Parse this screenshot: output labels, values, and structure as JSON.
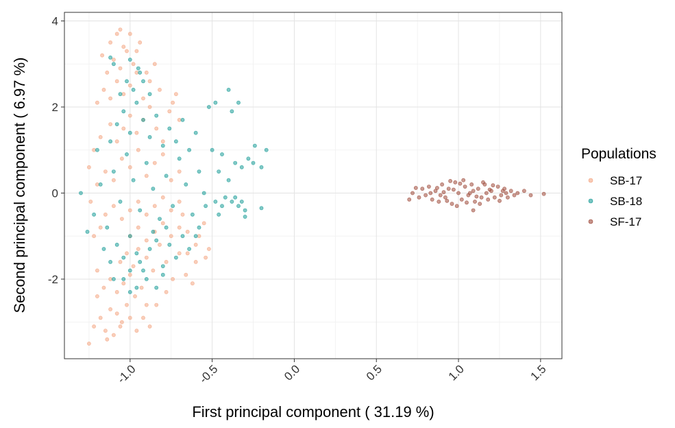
{
  "chart_data": {
    "type": "scatter",
    "title": "",
    "xlabel": "First principal component ( 31.19 %)",
    "ylabel": "Second principal component ( 6.97 %)",
    "xlim": [
      -1.4,
      1.63
    ],
    "ylim": [
      -3.85,
      4.2
    ],
    "x_ticks": [
      -1.0,
      -0.5,
      0.0,
      0.5,
      1.0,
      1.5
    ],
    "x_tick_labels": [
      "-1.0",
      "-0.5",
      "0.0",
      "0.5",
      "1.0",
      "1.5"
    ],
    "y_ticks": [
      -2,
      0,
      2,
      4
    ],
    "y_tick_labels": [
      "-2",
      "0",
      "2",
      "4"
    ],
    "grid": true,
    "legend": {
      "title": "Populations",
      "placement": "right"
    },
    "series": [
      {
        "name": "SB-17",
        "color": "#F4A582",
        "points": [
          [
            -1.25,
            -3.5
          ],
          [
            -1.22,
            -3.1
          ],
          [
            -1.18,
            -2.9
          ],
          [
            -1.15,
            -3.2
          ],
          [
            -1.12,
            -2.7
          ],
          [
            -1.1,
            -3.3
          ],
          [
            -1.08,
            -2.8
          ],
          [
            -1.05,
            -3.0
          ],
          [
            -1.02,
            -2.6
          ],
          [
            -1.0,
            -2.9
          ],
          [
            -1.2,
            -2.4
          ],
          [
            -1.16,
            -2.2
          ],
          [
            -1.12,
            -2.0
          ],
          [
            -1.08,
            -2.3
          ],
          [
            -1.04,
            -2.1
          ],
          [
            -1.0,
            -1.9
          ],
          [
            -0.97,
            -2.4
          ],
          [
            -0.93,
            -2.2
          ],
          [
            -0.9,
            -2.6
          ],
          [
            -0.88,
            -3.1
          ],
          [
            -1.06,
            -1.6
          ],
          [
            -1.02,
            -1.4
          ],
          [
            -0.98,
            -1.7
          ],
          [
            -0.95,
            -1.3
          ],
          [
            -0.9,
            -1.5
          ],
          [
            -0.86,
            -1.8
          ],
          [
            -0.82,
            -1.2
          ],
          [
            -0.78,
            -1.6
          ],
          [
            -0.74,
            -2.0
          ],
          [
            -0.7,
            -1.4
          ],
          [
            -0.66,
            -1.9
          ],
          [
            -0.62,
            -2.1
          ],
          [
            -0.6,
            -1.6
          ],
          [
            -1.0,
            -1.0
          ],
          [
            -0.95,
            -0.8
          ],
          [
            -0.9,
            -1.1
          ],
          [
            -0.85,
            -0.9
          ],
          [
            -0.8,
            -0.7
          ],
          [
            -0.75,
            -1.0
          ],
          [
            -0.7,
            -0.8
          ],
          [
            -0.65,
            -0.9
          ],
          [
            -0.6,
            -1.2
          ],
          [
            -0.55,
            -0.7
          ],
          [
            -0.52,
            -1.3
          ],
          [
            -1.15,
            -0.5
          ],
          [
            -1.1,
            -0.3
          ],
          [
            -1.05,
            -0.6
          ],
          [
            -1.0,
            -0.4
          ],
          [
            -0.95,
            -0.2
          ],
          [
            -0.9,
            -0.5
          ],
          [
            -0.85,
            -0.3
          ],
          [
            -0.8,
            -0.1
          ],
          [
            -0.75,
            -0.4
          ],
          [
            -0.7,
            -0.2
          ],
          [
            -1.2,
            0.2
          ],
          [
            -1.15,
            0.5
          ],
          [
            -1.1,
            0.3
          ],
          [
            -1.05,
            0.8
          ],
          [
            -1.0,
            0.6
          ],
          [
            -0.95,
            1.0
          ],
          [
            -0.9,
            0.4
          ],
          [
            -0.85,
            0.7
          ],
          [
            -0.8,
            0.9
          ],
          [
            -0.75,
            0.3
          ],
          [
            -0.7,
            0.5
          ],
          [
            -1.22,
            1.0
          ],
          [
            -1.18,
            1.3
          ],
          [
            -1.12,
            1.6
          ],
          [
            -1.08,
            1.2
          ],
          [
            -1.04,
            1.5
          ],
          [
            -1.0,
            1.8
          ],
          [
            -0.96,
            1.4
          ],
          [
            -0.92,
            1.7
          ],
          [
            -0.88,
            2.0
          ],
          [
            -0.84,
            1.5
          ],
          [
            -0.8,
            1.2
          ],
          [
            -0.76,
            1.9
          ],
          [
            -0.72,
            2.3
          ],
          [
            -0.7,
            1.7
          ],
          [
            -1.2,
            2.1
          ],
          [
            -1.16,
            2.4
          ],
          [
            -1.12,
            2.2
          ],
          [
            -1.08,
            2.6
          ],
          [
            -1.04,
            2.3
          ],
          [
            -1.0,
            2.5
          ],
          [
            -0.96,
            2.8
          ],
          [
            -0.92,
            2.2
          ],
          [
            -0.88,
            2.6
          ],
          [
            -0.85,
            3.0
          ],
          [
            -1.14,
            2.8
          ],
          [
            -1.1,
            3.1
          ],
          [
            -1.06,
            2.9
          ],
          [
            -1.02,
            3.3
          ],
          [
            -0.98,
            3.0
          ],
          [
            -0.94,
            3.5
          ],
          [
            -1.12,
            3.5
          ],
          [
            -1.08,
            3.7
          ],
          [
            -1.04,
            3.4
          ],
          [
            -1.0,
            3.7
          ],
          [
            -1.06,
            3.8
          ],
          [
            -1.17,
            3.2
          ],
          [
            -0.96,
            3.3
          ],
          [
            -0.9,
            2.8
          ],
          [
            -0.82,
            2.4
          ],
          [
            -0.74,
            2.1
          ],
          [
            -1.25,
            0.6
          ],
          [
            -1.24,
            -0.2
          ],
          [
            -1.22,
            -1.0
          ],
          [
            -1.2,
            -1.8
          ],
          [
            -1.18,
            -0.8
          ],
          [
            -0.65,
            -1.4
          ],
          [
            -0.58,
            -1.0
          ],
          [
            -0.54,
            -1.5
          ],
          [
            -0.68,
            -0.5
          ],
          [
            -0.78,
            -2.3
          ],
          [
            -0.84,
            -2.6
          ],
          [
            -0.92,
            -2.9
          ],
          [
            -0.96,
            -3.2
          ],
          [
            -1.14,
            -3.4
          ],
          [
            -1.06,
            -3.1
          ]
        ]
      },
      {
        "name": "SB-18",
        "color": "#1A9C98",
        "points": [
          [
            -1.3,
            0.0
          ],
          [
            -1.26,
            -0.9
          ],
          [
            -1.22,
            -0.5
          ],
          [
            -1.18,
            0.2
          ],
          [
            -1.14,
            -0.8
          ],
          [
            -1.1,
            0.5
          ],
          [
            -1.06,
            -0.2
          ],
          [
            -1.02,
            0.9
          ],
          [
            -0.98,
            0.3
          ],
          [
            -0.94,
            -0.4
          ],
          [
            -0.9,
            0.7
          ],
          [
            -0.86,
            0.1
          ],
          [
            -0.82,
            -0.6
          ],
          [
            -0.78,
            0.4
          ],
          [
            -0.74,
            -0.3
          ],
          [
            -0.7,
            0.8
          ],
          [
            -0.66,
            0.2
          ],
          [
            -0.62,
            -0.5
          ],
          [
            -0.58,
            0.5
          ],
          [
            -0.55,
            0.0
          ],
          [
            -1.12,
            1.2
          ],
          [
            -1.08,
            1.6
          ],
          [
            -1.04,
            1.9
          ],
          [
            -1.0,
            1.4
          ],
          [
            -0.96,
            2.1
          ],
          [
            -0.92,
            1.7
          ],
          [
            -0.88,
            1.3
          ],
          [
            -0.84,
            1.8
          ],
          [
            -0.8,
            1.1
          ],
          [
            -0.76,
            1.5
          ],
          [
            -0.72,
            1.2
          ],
          [
            -0.68,
            1.7
          ],
          [
            -0.64,
            1.0
          ],
          [
            -0.6,
            1.4
          ],
          [
            -1.06,
            2.3
          ],
          [
            -1.02,
            2.6
          ],
          [
            -0.98,
            2.4
          ],
          [
            -0.95,
            2.9
          ],
          [
            -0.92,
            2.6
          ],
          [
            -0.88,
            2.3
          ],
          [
            -1.1,
            3.0
          ],
          [
            -1.0,
            3.1
          ],
          [
            -0.94,
            2.8
          ],
          [
            -1.12,
            3.15
          ],
          [
            -1.2,
            1.0
          ],
          [
            -1.16,
            -1.3
          ],
          [
            -1.12,
            -1.6
          ],
          [
            -1.08,
            -1.2
          ],
          [
            -1.04,
            -1.5
          ],
          [
            -1.0,
            -1.0
          ],
          [
            -0.96,
            -1.4
          ],
          [
            -0.92,
            -1.8
          ],
          [
            -0.88,
            -1.3
          ],
          [
            -0.84,
            -1.1
          ],
          [
            -0.8,
            -1.7
          ],
          [
            -0.76,
            -1.2
          ],
          [
            -0.72,
            -1.5
          ],
          [
            -0.68,
            -1.0
          ],
          [
            -0.64,
            -1.3
          ],
          [
            -1.04,
            -2.0
          ],
          [
            -1.0,
            -1.8
          ],
          [
            -0.96,
            -2.2
          ],
          [
            -0.9,
            -2.0
          ],
          [
            -0.84,
            -2.2
          ],
          [
            -0.8,
            -1.9
          ],
          [
            -1.1,
            -2.0
          ],
          [
            -1.0,
            -2.3
          ],
          [
            -0.94,
            -1.6
          ],
          [
            -0.86,
            -0.9
          ],
          [
            -0.78,
            -0.8
          ],
          [
            -0.5,
            1.0
          ],
          [
            -0.46,
            0.5
          ],
          [
            -0.44,
            0.9
          ],
          [
            -0.4,
            0.3
          ],
          [
            -0.36,
            0.7
          ],
          [
            -0.32,
            0.6
          ],
          [
            -0.28,
            0.8
          ],
          [
            -0.25,
            0.7
          ],
          [
            -0.2,
            0.6
          ],
          [
            -0.24,
            1.1
          ],
          [
            -0.17,
            1.0
          ],
          [
            -0.52,
            2.0
          ],
          [
            -0.48,
            2.1
          ],
          [
            -0.4,
            2.4
          ],
          [
            -0.38,
            1.9
          ],
          [
            -0.34,
            2.1
          ],
          [
            -0.42,
            -0.1
          ],
          [
            -0.38,
            -0.2
          ],
          [
            -0.36,
            -0.1
          ],
          [
            -0.34,
            -0.3
          ],
          [
            -0.32,
            -0.2
          ],
          [
            -0.3,
            -0.4
          ],
          [
            -0.48,
            -0.2
          ],
          [
            -0.44,
            -0.3
          ],
          [
            -0.2,
            -0.35
          ],
          [
            -0.3,
            -0.55
          ],
          [
            -0.46,
            -0.5
          ],
          [
            -0.58,
            -0.8
          ],
          [
            -0.54,
            -0.3
          ],
          [
            -0.6,
            -1.0
          ]
        ]
      },
      {
        "name": "SF-17",
        "color": "#9E4A3A",
        "points": [
          [
            0.72,
            0.0
          ],
          [
            0.76,
            -0.1
          ],
          [
            0.78,
            0.1
          ],
          [
            0.8,
            -0.05
          ],
          [
            0.82,
            0.15
          ],
          [
            0.84,
            -0.15
          ],
          [
            0.86,
            0.05
          ],
          [
            0.88,
            -0.2
          ],
          [
            0.9,
            0.2
          ],
          [
            0.92,
            -0.1
          ],
          [
            0.94,
            0.1
          ],
          [
            0.96,
            -0.25
          ],
          [
            0.98,
            0.25
          ],
          [
            1.0,
            0.0
          ],
          [
            1.02,
            -0.15
          ],
          [
            1.04,
            0.15
          ],
          [
            1.06,
            -0.05
          ],
          [
            1.08,
            0.2
          ],
          [
            1.1,
            -0.2
          ],
          [
            1.12,
            0.1
          ],
          [
            1.14,
            -0.1
          ],
          [
            1.16,
            0.2
          ],
          [
            1.18,
            -0.15
          ],
          [
            1.2,
            0.05
          ],
          [
            1.22,
            -0.1
          ],
          [
            1.24,
            0.15
          ],
          [
            1.26,
            -0.05
          ],
          [
            1.28,
            0.1
          ],
          [
            1.3,
            -0.1
          ],
          [
            1.32,
            0.05
          ],
          [
            1.34,
            -0.05
          ],
          [
            1.36,
            0.0
          ],
          [
            1.4,
            0.05
          ],
          [
            1.44,
            -0.05
          ],
          [
            1.52,
            -0.02
          ],
          [
            0.7,
            -0.15
          ],
          [
            0.74,
            0.12
          ],
          [
            0.87,
            0.12
          ],
          [
            0.93,
            -0.18
          ],
          [
            0.97,
            0.08
          ],
          [
            1.01,
            0.22
          ],
          [
            1.05,
            -0.22
          ],
          [
            1.09,
            0.05
          ],
          [
            1.13,
            -0.25
          ],
          [
            1.17,
            0.0
          ],
          [
            1.21,
            0.18
          ],
          [
            1.25,
            -0.18
          ],
          [
            1.29,
            0.0
          ],
          [
            1.09,
            -0.4
          ],
          [
            0.99,
            -0.3
          ],
          [
            1.03,
            0.3
          ],
          [
            0.95,
            0.28
          ],
          [
            1.15,
            0.25
          ],
          [
            0.89,
            -0.05
          ],
          [
            1.07,
            0.0
          ],
          [
            1.19,
            0.08
          ],
          [
            0.83,
            0.0
          ],
          [
            1.27,
            0.05
          ],
          [
            1.11,
            -0.08
          ],
          [
            0.91,
            0.02
          ]
        ]
      }
    ]
  }
}
